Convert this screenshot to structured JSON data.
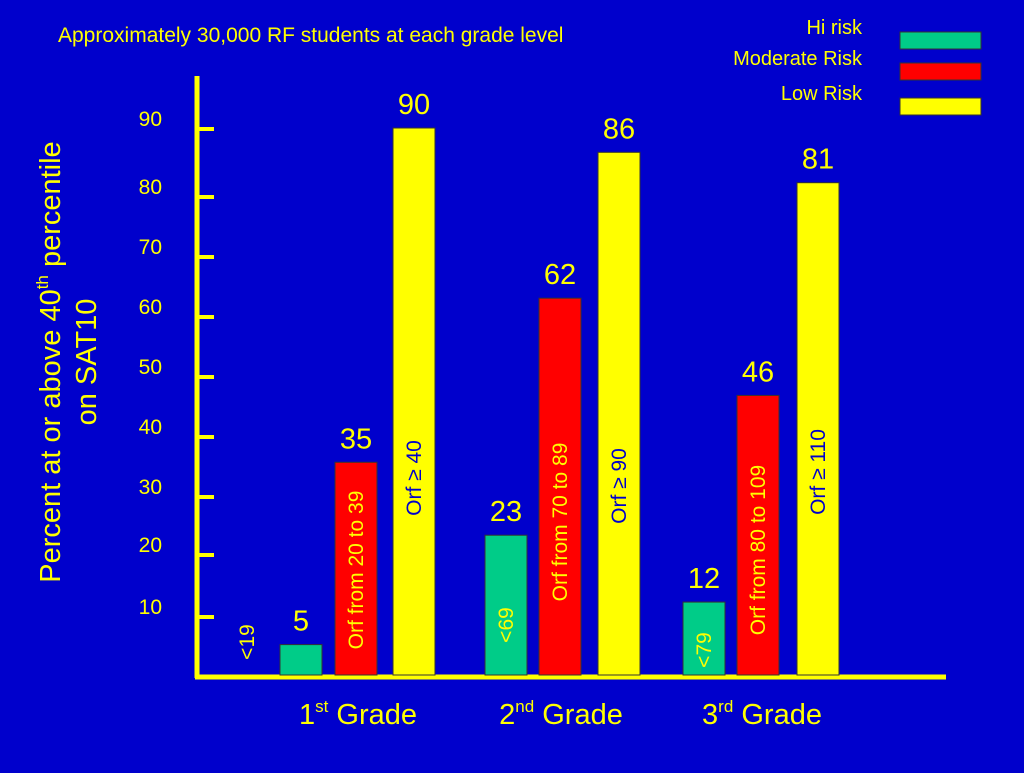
{
  "chart_data": {
    "type": "bar",
    "title": "Approximately 30,000 RF students at each grade level",
    "ylabel_line1": "Percent at or above 40",
    "ylabel_sup": "th",
    "ylabel_line1_end": " percentile",
    "ylabel_line2": "on SAT10",
    "ylim": [
      0,
      100
    ],
    "yticks": [
      10,
      20,
      30,
      40,
      50,
      60,
      70,
      80,
      90
    ],
    "legend_placement": "top-right",
    "categories": [
      {
        "base": "1",
        "sup": "st",
        "rest": " Grade"
      },
      {
        "base": "2",
        "sup": "nd",
        "rest": " Grade"
      },
      {
        "base": "3",
        "sup": "rd",
        "rest": " Grade"
      }
    ],
    "series": [
      {
        "name": "Hi risk",
        "color": "#00cc88",
        "values": [
          5,
          23,
          12
        ],
        "bar_labels": [
          "<19",
          "<69",
          "<79"
        ]
      },
      {
        "name": "Moderate Risk",
        "color": "#ff0000",
        "values": [
          35,
          62,
          46
        ],
        "bar_labels": [
          "Orf from 20 to 39",
          "Orf from 70 to 89",
          "Orf from 80 to 109"
        ]
      },
      {
        "name": "Low Risk",
        "color": "#ffff00",
        "values": [
          90,
          86,
          81
        ],
        "bar_labels": [
          "Orf ≥ 40",
          "Orf ≥ 90",
          "Orf ≥ 110"
        ]
      }
    ],
    "colors": {
      "background": "#0000cc",
      "text": "#ffff00",
      "axis": "#ffff00",
      "legend_text": "#ffff00"
    }
  }
}
